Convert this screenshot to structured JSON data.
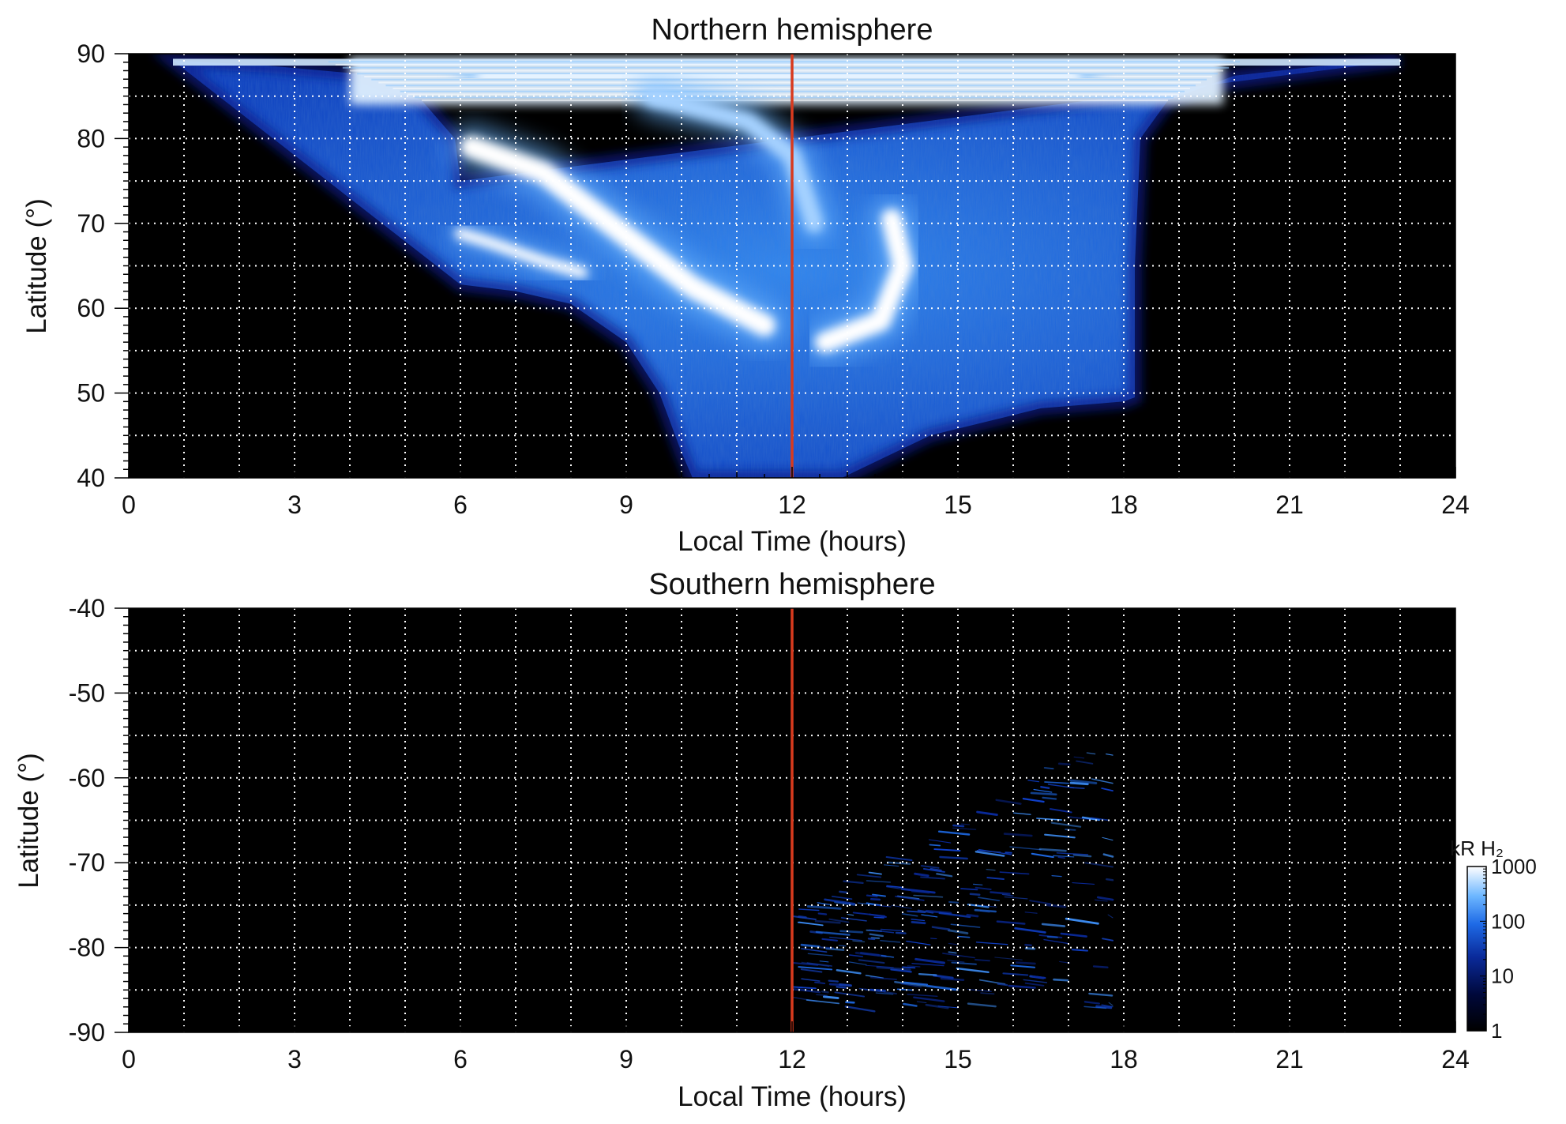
{
  "colors": {
    "background": "#000000",
    "grid": "#ffffff",
    "noon_line": "#d83a1e",
    "colormap": [
      "#000000",
      "#00083a",
      "#0a2a9a",
      "#1e6ae6",
      "#6cb6ff",
      "#ffffff"
    ]
  },
  "chart_data": [
    {
      "type": "heatmap",
      "title": "Northern hemisphere",
      "xlabel": "Local Time (hours)",
      "ylabel": "Latitude (°)",
      "xlim": [
        0,
        24
      ],
      "ylim": [
        40,
        90
      ],
      "x_ticks": [
        0,
        3,
        6,
        9,
        12,
        15,
        18,
        21,
        24
      ],
      "x_tick_labels": [
        "0",
        "3",
        "6",
        "9",
        "12",
        "15",
        "18",
        "21",
        "24"
      ],
      "y_ticks": [
        40,
        50,
        60,
        70,
        80,
        90
      ],
      "y_tick_labels": [
        "40",
        "50",
        "60",
        "70",
        "80",
        "90"
      ],
      "grid": true,
      "grid_x_step": 1,
      "grid_y_step": 5,
      "reference_line_x": 12,
      "coverage_upper": [
        [
          0.8,
          89.2
        ],
        [
          2.5,
          88.6
        ],
        [
          4.2,
          87.6
        ],
        [
          5.3,
          84.5
        ],
        [
          5.9,
          80
        ],
        [
          6.0,
          75
        ]
      ],
      "coverage_lower": [
        [
          6.0,
          62.8
        ],
        [
          7.0,
          62
        ],
        [
          8.0,
          60.5
        ],
        [
          9.0,
          56
        ],
        [
          9.6,
          50
        ],
        [
          10.0,
          43
        ],
        [
          10.2,
          40
        ],
        [
          12.9,
          40
        ],
        [
          14.5,
          45
        ],
        [
          16.5,
          48.2
        ],
        [
          18.0,
          49.0
        ],
        [
          18.2,
          49.5
        ],
        [
          18.2,
          65
        ],
        [
          18.3,
          80
        ],
        [
          18.8,
          84.5
        ],
        [
          20.0,
          87.4
        ],
        [
          21.5,
          88.5
        ],
        [
          23.0,
          89.2
        ]
      ],
      "arcs": [
        {
          "points": [
            [
              6.0,
              68.8
            ],
            [
              6.5,
              67.8
            ],
            [
              7.5,
              65.5
            ],
            [
              8.2,
              64.2
            ]
          ],
          "intensity": 1000,
          "width": 1.3
        },
        {
          "points": [
            [
              6.2,
              79
            ],
            [
              7.5,
              76
            ],
            [
              8.8,
              69.5
            ],
            [
              10.2,
              62.5
            ],
            [
              11.5,
              58.0
            ]
          ],
          "intensity": 1000,
          "width": 2.6
        },
        {
          "points": [
            [
              13.8,
              70.5
            ],
            [
              14.0,
              65
            ],
            [
              13.6,
              58.5
            ],
            [
              12.6,
              56.0
            ]
          ],
          "intensity": 1000,
          "width": 2.4
        },
        {
          "points": [
            [
              6.5,
              87.2
            ],
            [
              10.0,
              87.5
            ],
            [
              13.5,
              87.5
            ],
            [
              17.0,
              87.2
            ]
          ],
          "intensity": 800,
          "width": 3.0
        },
        {
          "points": [
            [
              9.5,
              84.8
            ],
            [
              11.2,
              82.0
            ],
            [
              12.0,
              78.0
            ],
            [
              12.4,
              70.0
            ]
          ],
          "intensity": 300,
          "width": 2.2
        }
      ],
      "colorbar": null
    },
    {
      "type": "heatmap",
      "title": "Southern hemisphere",
      "xlabel": "Local Time (hours)",
      "ylabel": "Latitude (°)",
      "xlim": [
        0,
        24
      ],
      "ylim": [
        -90,
        -40
      ],
      "x_ticks": [
        0,
        3,
        6,
        9,
        12,
        15,
        18,
        21,
        24
      ],
      "x_tick_labels": [
        "0",
        "3",
        "6",
        "9",
        "12",
        "15",
        "18",
        "21",
        "24"
      ],
      "y_ticks": [
        -40,
        -50,
        -60,
        -70,
        -80,
        -90
      ],
      "y_tick_labels": [
        "-40",
        "-50",
        "-60",
        "-70",
        "-80",
        "-90"
      ],
      "grid": true,
      "grid_x_step": 1,
      "grid_y_step": 5,
      "reference_line_x": 12,
      "emission_region": {
        "x_min": 12.0,
        "x_max": 17.8,
        "lat_min": -87,
        "lat_max": -54
      },
      "colorbar": {
        "label": "kR H₂",
        "scale": "log",
        "range": [
          1,
          1000
        ],
        "ticks": [
          1,
          10,
          100,
          1000
        ],
        "tick_labels": [
          "1",
          "10",
          "100",
          "1000"
        ]
      }
    }
  ]
}
